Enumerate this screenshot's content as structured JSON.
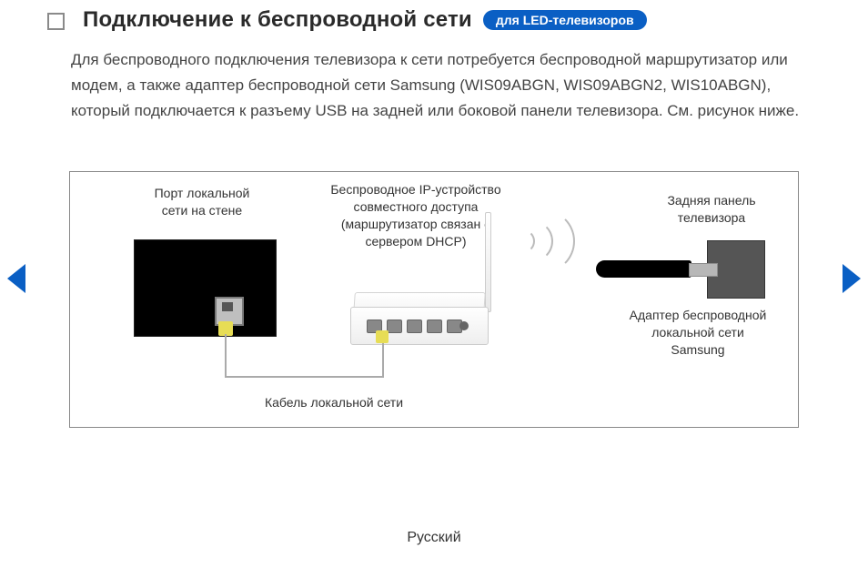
{
  "heading": {
    "title": "Подключение к беспроводной сети",
    "badge": "для LED-телевизоров"
  },
  "body_text": "Для беспроводного подключения телевизора к сети потребуется беспроводной маршрутизатор или модем, а также адаптер беспроводной сети Samsung (WIS09ABGN, WIS09ABGN2, WIS10ABGN), который подключается к разъему USB на задней или боковой панели телевизора. См. рисунок ниже.",
  "diagram": {
    "wall_port_label": "Порт локальной\nсети на стене",
    "router_label": "Беспроводное IP-устройство\nсовместного доступа\n(маршрутизатор связан с\nсервером DHCP)",
    "tv_back_label": "Задняя панель\nтелевизора",
    "adapter_label": "Адаптер беспроводной\nлокальной сети\nSamsung",
    "cable_label": "Кабель локальной сети"
  },
  "footer": {
    "language": "Русский"
  },
  "colors": {
    "accent": "#0a5fc4",
    "text": "#333333",
    "border": "#888888"
  }
}
